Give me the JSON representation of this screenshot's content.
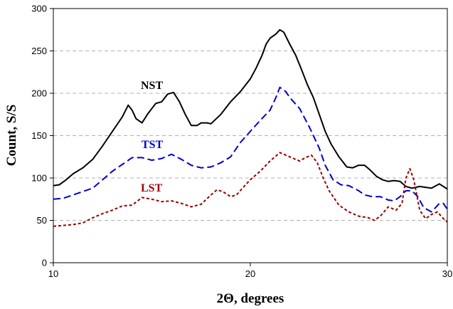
{
  "chart_data": {
    "type": "line",
    "xlabel": "2Θ, degrees",
    "ylabel": "Count, S/S",
    "xlim": [
      10,
      30
    ],
    "ylim": [
      0,
      300
    ],
    "x_ticks": [
      10,
      20,
      30
    ],
    "y_ticks": [
      0,
      50,
      100,
      150,
      200,
      250,
      300
    ],
    "grid": "horizontal dashed",
    "series": [
      {
        "name": "NST",
        "color": "#000000",
        "style": "solid",
        "points": [
          [
            10,
            91
          ],
          [
            10.3,
            92
          ],
          [
            10.6,
            97
          ],
          [
            11,
            105
          ],
          [
            11.5,
            112
          ],
          [
            12,
            122
          ],
          [
            12.5,
            138
          ],
          [
            13,
            155
          ],
          [
            13.5,
            172
          ],
          [
            13.8,
            186
          ],
          [
            14,
            180
          ],
          [
            14.2,
            170
          ],
          [
            14.5,
            165
          ],
          [
            14.8,
            176
          ],
          [
            15.2,
            188
          ],
          [
            15.5,
            190
          ],
          [
            15.8,
            199
          ],
          [
            16.1,
            201
          ],
          [
            16.4,
            190
          ],
          [
            16.7,
            175
          ],
          [
            17,
            162
          ],
          [
            17.3,
            162
          ],
          [
            17.5,
            165
          ],
          [
            17.8,
            165
          ],
          [
            18,
            164
          ],
          [
            18.5,
            175
          ],
          [
            19,
            190
          ],
          [
            19.5,
            202
          ],
          [
            20,
            217
          ],
          [
            20.3,
            230
          ],
          [
            20.6,
            245
          ],
          [
            20.8,
            258
          ],
          [
            21,
            265
          ],
          [
            21.3,
            270
          ],
          [
            21.5,
            275
          ],
          [
            21.7,
            272
          ],
          [
            22,
            258
          ],
          [
            22.3,
            245
          ],
          [
            22.6,
            228
          ],
          [
            22.9,
            210
          ],
          [
            23.2,
            195
          ],
          [
            23.5,
            175
          ],
          [
            23.8,
            155
          ],
          [
            24.1,
            140
          ],
          [
            24.5,
            125
          ],
          [
            24.9,
            113
          ],
          [
            25.2,
            112
          ],
          [
            25.5,
            115
          ],
          [
            25.8,
            115
          ],
          [
            26.1,
            109
          ],
          [
            26.4,
            102
          ],
          [
            26.7,
            98
          ],
          [
            27,
            96
          ],
          [
            27.3,
            97
          ],
          [
            27.6,
            96
          ],
          [
            27.9,
            90
          ],
          [
            28.2,
            88
          ],
          [
            28.6,
            90
          ],
          [
            28.9,
            89
          ],
          [
            29.2,
            88
          ],
          [
            29.6,
            93
          ],
          [
            30,
            87
          ]
        ]
      },
      {
        "name": "TST",
        "color": "#0000cc",
        "style": "dashed",
        "points": [
          [
            10,
            75
          ],
          [
            10.5,
            76
          ],
          [
            11,
            80
          ],
          [
            11.5,
            84
          ],
          [
            12,
            88
          ],
          [
            12.5,
            98
          ],
          [
            13,
            108
          ],
          [
            13.5,
            116
          ],
          [
            14,
            124
          ],
          [
            14.5,
            124
          ],
          [
            15,
            121
          ],
          [
            15.5,
            123
          ],
          [
            16,
            128
          ],
          [
            16.5,
            122
          ],
          [
            17,
            115
          ],
          [
            17.5,
            112
          ],
          [
            18,
            113
          ],
          [
            18.5,
            118
          ],
          [
            19,
            125
          ],
          [
            19.5,
            142
          ],
          [
            20,
            155
          ],
          [
            20.5,
            168
          ],
          [
            21,
            180
          ],
          [
            21.3,
            195
          ],
          [
            21.5,
            207
          ],
          [
            21.8,
            202
          ],
          [
            22,
            195
          ],
          [
            22.5,
            182
          ],
          [
            23,
            160
          ],
          [
            23.5,
            135
          ],
          [
            23.8,
            115
          ],
          [
            24.2,
            98
          ],
          [
            24.6,
            92
          ],
          [
            25,
            91
          ],
          [
            25.5,
            85
          ],
          [
            25.8,
            80
          ],
          [
            26.2,
            78
          ],
          [
            26.6,
            78
          ],
          [
            27,
            74
          ],
          [
            27.3,
            73
          ],
          [
            27.6,
            78
          ],
          [
            27.9,
            85
          ],
          [
            28.2,
            85
          ],
          [
            28.5,
            78
          ],
          [
            28.8,
            65
          ],
          [
            29.2,
            60
          ],
          [
            29.6,
            70
          ],
          [
            29.8,
            70
          ],
          [
            30,
            63
          ]
        ]
      },
      {
        "name": "LST",
        "color": "#990000",
        "style": "dotted",
        "points": [
          [
            10,
            43
          ],
          [
            10.5,
            44
          ],
          [
            11,
            45
          ],
          [
            11.5,
            47
          ],
          [
            12,
            53
          ],
          [
            12.5,
            58
          ],
          [
            13,
            62
          ],
          [
            13.5,
            67
          ],
          [
            14,
            68
          ],
          [
            14.5,
            77
          ],
          [
            15,
            75
          ],
          [
            15.5,
            72
          ],
          [
            16,
            73
          ],
          [
            16.5,
            70
          ],
          [
            17,
            66
          ],
          [
            17.5,
            69
          ],
          [
            18,
            80
          ],
          [
            18.3,
            86
          ],
          [
            18.6,
            84
          ],
          [
            19,
            78
          ],
          [
            19.3,
            80
          ],
          [
            19.6,
            88
          ],
          [
            20,
            98
          ],
          [
            20.5,
            108
          ],
          [
            21,
            120
          ],
          [
            21.5,
            130
          ],
          [
            22,
            125
          ],
          [
            22.5,
            120
          ],
          [
            22.8,
            124
          ],
          [
            23.1,
            127
          ],
          [
            23.4,
            118
          ],
          [
            23.7,
            100
          ],
          [
            24,
            85
          ],
          [
            24.5,
            68
          ],
          [
            25,
            60
          ],
          [
            25.5,
            55
          ],
          [
            26,
            53
          ],
          [
            26.3,
            50
          ],
          [
            26.6,
            55
          ],
          [
            27,
            66
          ],
          [
            27.4,
            62
          ],
          [
            27.7,
            70
          ],
          [
            27.9,
            100
          ],
          [
            28.1,
            111
          ],
          [
            28.3,
            98
          ],
          [
            28.6,
            62
          ],
          [
            28.9,
            52
          ],
          [
            29.2,
            57
          ],
          [
            29.5,
            60
          ],
          [
            29.8,
            52
          ],
          [
            30,
            48
          ]
        ]
      }
    ]
  }
}
